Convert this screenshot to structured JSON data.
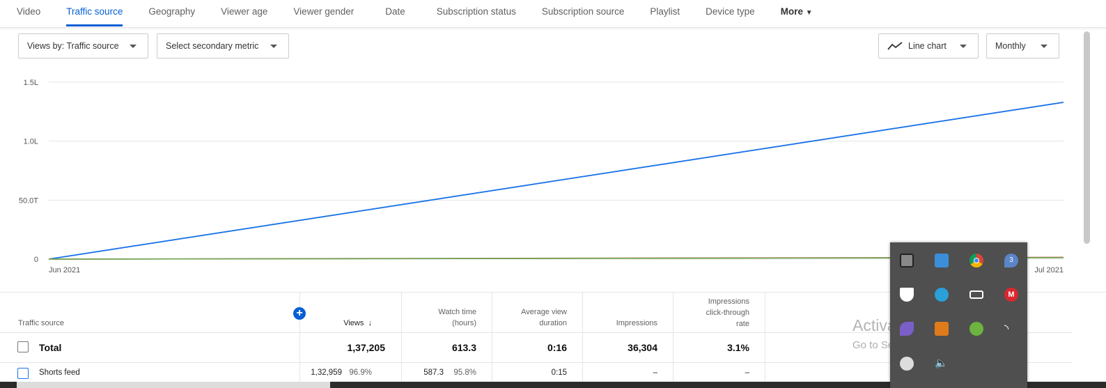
{
  "tabs": [
    {
      "label": "Video"
    },
    {
      "label": "Traffic source",
      "active": true
    },
    {
      "label": "Geography"
    },
    {
      "label": "Viewer age"
    },
    {
      "label": "Viewer gender"
    },
    {
      "label": "Date"
    },
    {
      "label": "Subscription status"
    },
    {
      "label": "Subscription source"
    },
    {
      "label": "Playlist"
    },
    {
      "label": "Device type"
    },
    {
      "label": "More"
    }
  ],
  "controls": {
    "primary": "Views by: Traffic source",
    "secondary": "Select secondary metric",
    "chart_type": "Line chart",
    "period": "Monthly"
  },
  "chart_data": {
    "type": "line",
    "x": [
      "Jun 2021",
      "Jul 2021"
    ],
    "yticks": [
      {
        "value": 0,
        "label": "0"
      },
      {
        "value": 50000,
        "label": "50.0T"
      },
      {
        "value": 100000,
        "label": "1.0L"
      },
      {
        "value": 150000,
        "label": "1.5L"
      }
    ],
    "ylim": [
      0,
      150000
    ],
    "grid": true,
    "series": [
      {
        "color": "#1a73e8",
        "values": [
          0,
          132959
        ]
      },
      {
        "color": "#c5504b",
        "values": [
          0,
          1500
        ]
      },
      {
        "color": "#6aa84f",
        "values": [
          0,
          1200
        ]
      }
    ]
  },
  "table": {
    "headers": {
      "source": "Traffic source",
      "views": "Views",
      "watch1": "Watch time",
      "watch2": "(hours)",
      "avd1": "Average view",
      "avd2": "duration",
      "impr": "Impressions",
      "ctr1": "Impressions",
      "ctr2": "click-through",
      "ctr3": "rate"
    },
    "total": {
      "label": "Total",
      "views": "1,37,205",
      "watch": "613.3",
      "avd": "0:16",
      "impr": "36,304",
      "ctr": "3.1%"
    },
    "rows": [
      {
        "label": "Shorts feed",
        "views": "1,32,959",
        "views_pct": "96.9%",
        "watch": "587.3",
        "watch_pct": "95.8%",
        "avd": "0:15",
        "impr": "–",
        "ctr": "–"
      }
    ]
  },
  "watermark": {
    "line1": "Activate Windows",
    "line2": "Go to Settings to activate Windows."
  },
  "tray": {
    "icons": [
      "display-icon",
      "network-adapter-icon",
      "chrome-icon",
      "notification-badge-icon",
      "defender-warning-icon",
      "telegram-icon",
      "battery-icon",
      "mega-icon",
      "feather-icon",
      "java-icon",
      "check-app-icon",
      "wifi-icon",
      "onedrive-error-icon",
      "volume-icon"
    ],
    "badge": "3"
  }
}
